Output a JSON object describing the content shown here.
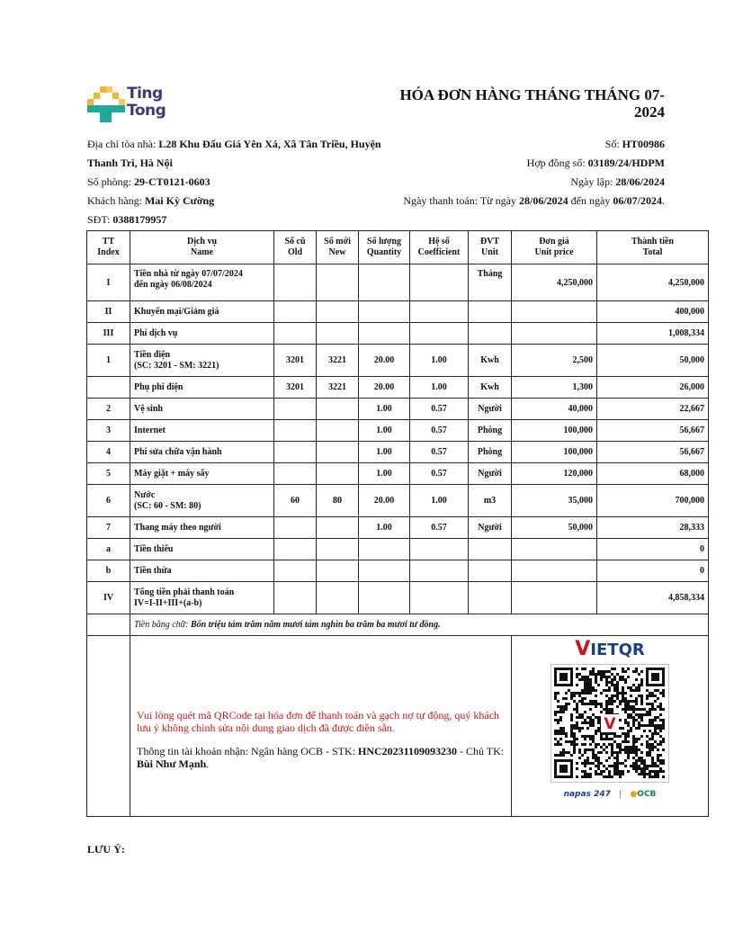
{
  "logo": {
    "text_line1": "Ting",
    "text_line2": "Tong",
    "colors": [
      "#f6b52e",
      "#1fa99a"
    ]
  },
  "title": "HÓA ĐƠN HÀNG THÁNG THÁNG 07-2024",
  "info_left": {
    "address_label": "Địa chỉ tòa nhà: ",
    "address": "L28 Khu Đấu Giá Yên Xá, Xã Tân Triều, Huyện Thanh Trì, Hà Nội",
    "room_label": "Số phòng: ",
    "room": "29-CT0121-0603",
    "customer_label": "Khách hàng: ",
    "customer": "Mai Kỳ Cường",
    "phone_label": "SĐT: ",
    "phone": "0388179957"
  },
  "info_right": {
    "number_label": "Số: ",
    "number": "HT00986",
    "contract_label": "Hợp đồng số: ",
    "contract": "03189/24/HDPM",
    "created_label": "Ngày lập: ",
    "created": "28/06/2024",
    "pay_label": "Ngày thanh toán: Từ ngày ",
    "pay_from": "28/06/2024",
    "pay_mid": " đến ngày ",
    "pay_to": "06/07/2024",
    "pay_end": "."
  },
  "table": {
    "headers": [
      [
        "TT",
        "Index"
      ],
      [
        "Dịch vụ",
        "Name"
      ],
      [
        "Số cũ",
        "Old"
      ],
      [
        "Số mới",
        "New"
      ],
      [
        "Số lượng",
        "Quantity"
      ],
      [
        "Hệ số",
        "Coefficient"
      ],
      [
        "ĐVT",
        "Unit"
      ],
      [
        "Đơn giá",
        "Unit price"
      ],
      [
        "Thành tiền",
        "Total"
      ]
    ],
    "rows": [
      {
        "index": "I",
        "name": "Tiền nhà từ ngày 07/07/2024",
        "name2": "đến ngày 06/08/2024",
        "old": "",
        "new": "",
        "qty": "",
        "coef": "",
        "unit": "Tháng",
        "price": "4,250,000",
        "total": "4,250,000"
      },
      {
        "index": "II",
        "name": "Khuyến mại/Giảm giá",
        "old": "",
        "new": "",
        "qty": "",
        "coef": "",
        "unit": "",
        "price": "",
        "total": "400,000"
      },
      {
        "index": "III",
        "name": "Phí dịch vụ",
        "old": "",
        "new": "",
        "qty": "",
        "coef": "",
        "unit": "",
        "price": "",
        "total": "1,008,334"
      },
      {
        "index": "1",
        "name": "Tiền điện",
        "name2": "(SC: 3201 - SM: 3221)",
        "old": "3201",
        "new": "3221",
        "qty": "20.00",
        "coef": "1.00",
        "unit": "Kwh",
        "price": "2,500",
        "total": "50,000"
      },
      {
        "index": "",
        "name": "Phụ phí điện",
        "old": "3201",
        "new": "3221",
        "qty": "20.00",
        "coef": "1.00",
        "unit": "Kwh",
        "price": "1,300",
        "total": "26,000"
      },
      {
        "index": "2",
        "name": "Vệ sinh",
        "old": "",
        "new": "",
        "qty": "1.00",
        "coef": "0.57",
        "unit": "Người",
        "price": "40,000",
        "total": "22,667"
      },
      {
        "index": "3",
        "name": "Internet",
        "old": "",
        "new": "",
        "qty": "1.00",
        "coef": "0.57",
        "unit": "Phòng",
        "price": "100,000",
        "total": "56,667"
      },
      {
        "index": "4",
        "name": "Phí sửa chữa vận hành",
        "old": "",
        "new": "",
        "qty": "1.00",
        "coef": "0.57",
        "unit": "Phòng",
        "price": "100,000",
        "total": "56,667"
      },
      {
        "index": "5",
        "name": "Máy giặt + máy sấy",
        "old": "",
        "new": "",
        "qty": "1.00",
        "coef": "0.57",
        "unit": "Người",
        "price": "120,000",
        "total": "68,000"
      },
      {
        "index": "6",
        "name": "Nước",
        "name2": "(SC: 60 - SM: 80)",
        "old": "60",
        "new": "80",
        "qty": "20.00",
        "coef": "1.00",
        "unit": "m3",
        "price": "35,000",
        "total": "700,000"
      },
      {
        "index": "7",
        "name": "Thang máy theo người",
        "old": "",
        "new": "",
        "qty": "1.00",
        "coef": "0.57",
        "unit": "Người",
        "price": "50,000",
        "total": "28,333"
      },
      {
        "index": "a",
        "name": "Tiền thiếu",
        "old": "",
        "new": "",
        "qty": "",
        "coef": "",
        "unit": "",
        "price": "",
        "total": "0"
      },
      {
        "index": "b",
        "name": "Tiền thừa",
        "old": "",
        "new": "",
        "qty": "",
        "coef": "",
        "unit": "",
        "price": "",
        "total": "0"
      },
      {
        "index": "IV",
        "name": "Tổng tiền phải thanh toán",
        "name2": "IV=I-II+III+(a-b)",
        "old": "",
        "new": "",
        "qty": "",
        "coef": "",
        "unit": "",
        "price": "",
        "total": "4,858,334"
      }
    ],
    "words_label": "Tiền bằng chữ: ",
    "words": "Bốn triệu tám trăm năm mươi tám nghìn ba trăm ba mươi tư đồng."
  },
  "payment": {
    "notice": "Vui lòng quét mã QRCode tại hóa đơn để thanh toán và gạch nợ tự động, quý khách lưu ý không chỉnh sửa nội dung giao dịch đã được điền sẵn.",
    "account_label": "Thông tin tài khoản nhận: Ngân hàng OCB - STK: ",
    "account": "HNC20231109093230",
    "owner_label": " - Chủ TK: ",
    "owner": "Bùi Như Mạnh",
    "owner_end": ".",
    "qr_brand": "VIETQR",
    "napas": "napas 247",
    "bank_logo": "OCB",
    "colors": {
      "vietqr_red": "#d0141b",
      "vietqr_blue": "#1b3f8f",
      "notice": "#d0141b"
    }
  },
  "note_label": "LƯU Ý:"
}
